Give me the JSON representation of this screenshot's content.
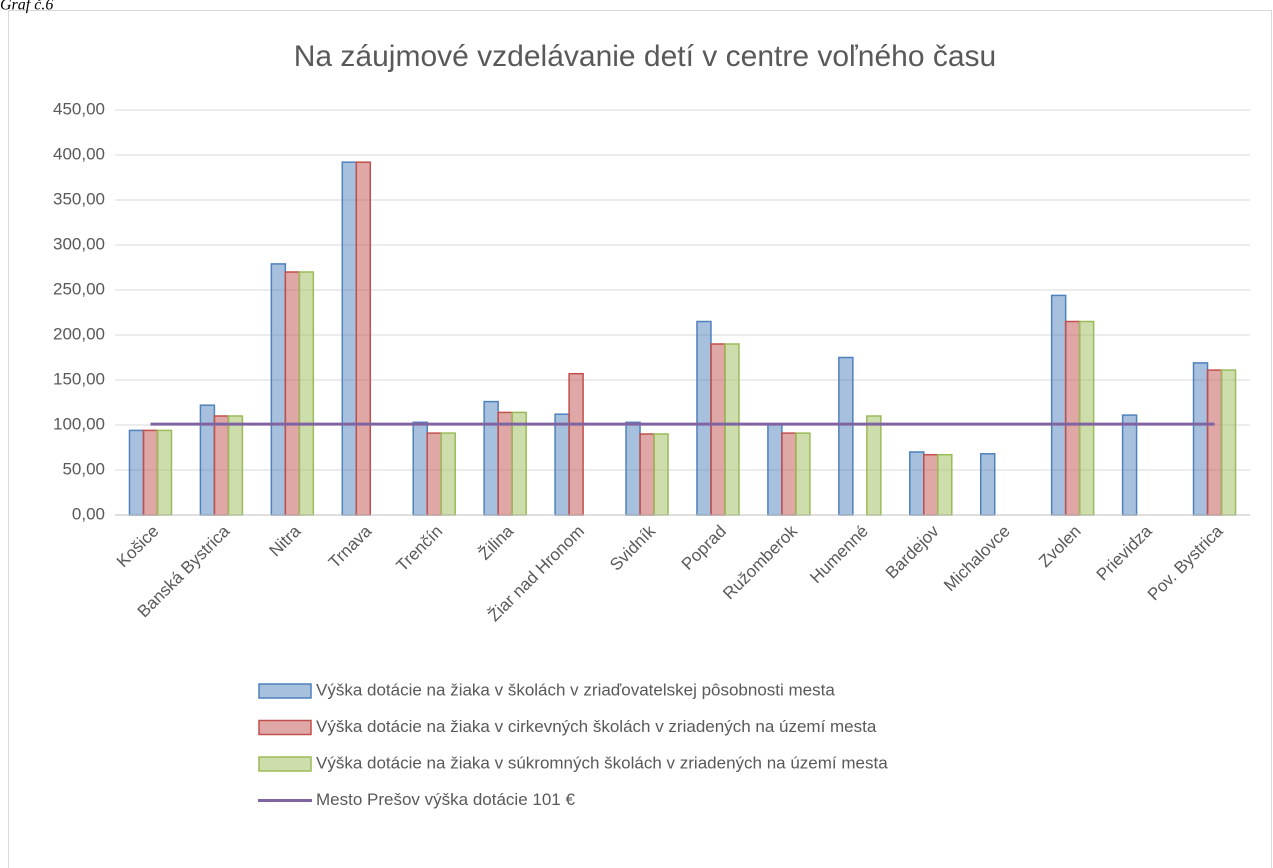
{
  "caption": "Graf č.6",
  "chart_data": {
    "type": "bar",
    "title": "Na záujmové vzdelávanie detí v centre voľného času",
    "categories": [
      "Košice",
      "Banská Bystrica",
      "Nitra",
      "Trnava",
      "Trenčín",
      "Žilina",
      "Žiar nad Hronom",
      "Svidník",
      "Poprad",
      "Ružomberok",
      "Humenné",
      "Bardejov",
      "Michalovce",
      "Zvolen",
      "Prievidza",
      "Pov. Bystrica"
    ],
    "series": [
      {
        "name": "Výška dotácie na žiaka v školách v zriaďovatelskej pôsobnosti mesta",
        "color": "#4f81bd",
        "values": [
          94,
          122,
          279,
          392,
          103,
          126,
          112,
          103,
          215,
          101,
          175,
          70,
          68,
          244,
          111,
          169
        ]
      },
      {
        "name": "Výška dotácie na žiaka v  cirkevných školách v zriadených na území mesta",
        "color": "#c0504d",
        "values": [
          94,
          110,
          270,
          392,
          91,
          114,
          157,
          90,
          190,
          91,
          null,
          67,
          null,
          215,
          null,
          161
        ]
      },
      {
        "name": "Výška dotácie na žiaka v  súkromných školách v zriadených na území mesta",
        "color": "#9bbb59",
        "values": [
          94,
          110,
          270,
          null,
          91,
          114,
          null,
          90,
          190,
          91,
          110,
          67,
          null,
          215,
          null,
          161
        ]
      },
      {
        "name": "Mesto Prešov výška dotácie 101 €",
        "color": "#8064a2",
        "kind": "line",
        "values": [
          101,
          101,
          101,
          101,
          101,
          101,
          101,
          101,
          101,
          101,
          101,
          101,
          101,
          101,
          101,
          101
        ]
      }
    ],
    "ylim": [
      0,
      450
    ],
    "yticks": [
      {
        "value": 0,
        "label": "0,00"
      },
      {
        "value": 50,
        "label": "50,00"
      },
      {
        "value": 100,
        "label": "100,00"
      },
      {
        "value": 150,
        "label": "150,00"
      },
      {
        "value": 200,
        "label": "200,00"
      },
      {
        "value": 250,
        "label": "250,00"
      },
      {
        "value": 300,
        "label": "300,00"
      },
      {
        "value": 350,
        "label": "350,00"
      },
      {
        "value": 400,
        "label": "400,00"
      },
      {
        "value": 450,
        "label": "450,00"
      }
    ],
    "grid": true
  }
}
